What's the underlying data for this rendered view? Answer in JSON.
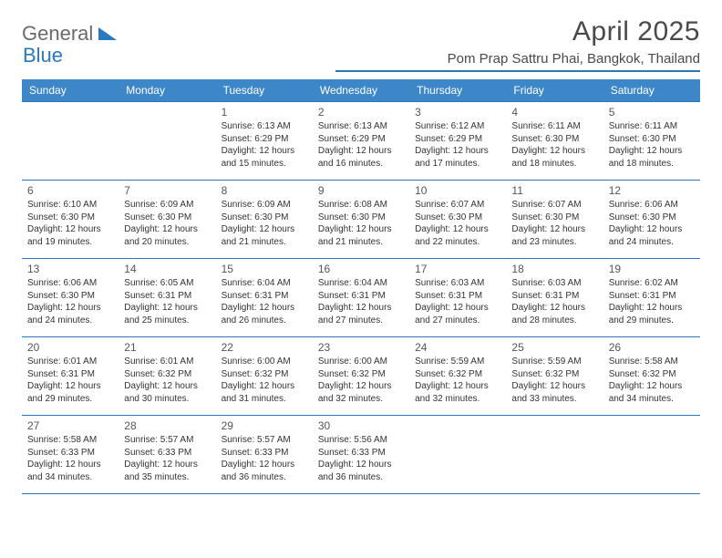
{
  "brand": {
    "part1": "General",
    "part2": "Blue"
  },
  "title": {
    "month": "April 2025",
    "location": "Pom Prap Sattru Phai, Bangkok, Thailand"
  },
  "colors": {
    "header_bg": "#3d87c9",
    "border": "#2a79c0",
    "logo_gray": "#6b6b6b",
    "logo_blue": "#2a79c0"
  },
  "dayHeaders": [
    "Sunday",
    "Monday",
    "Tuesday",
    "Wednesday",
    "Thursday",
    "Friday",
    "Saturday"
  ],
  "weeks": [
    [
      null,
      null,
      {
        "n": "1",
        "sr": "6:13 AM",
        "ss": "6:29 PM",
        "dl": "12 hours and 15 minutes."
      },
      {
        "n": "2",
        "sr": "6:13 AM",
        "ss": "6:29 PM",
        "dl": "12 hours and 16 minutes."
      },
      {
        "n": "3",
        "sr": "6:12 AM",
        "ss": "6:29 PM",
        "dl": "12 hours and 17 minutes."
      },
      {
        "n": "4",
        "sr": "6:11 AM",
        "ss": "6:30 PM",
        "dl": "12 hours and 18 minutes."
      },
      {
        "n": "5",
        "sr": "6:11 AM",
        "ss": "6:30 PM",
        "dl": "12 hours and 18 minutes."
      }
    ],
    [
      {
        "n": "6",
        "sr": "6:10 AM",
        "ss": "6:30 PM",
        "dl": "12 hours and 19 minutes."
      },
      {
        "n": "7",
        "sr": "6:09 AM",
        "ss": "6:30 PM",
        "dl": "12 hours and 20 minutes."
      },
      {
        "n": "8",
        "sr": "6:09 AM",
        "ss": "6:30 PM",
        "dl": "12 hours and 21 minutes."
      },
      {
        "n": "9",
        "sr": "6:08 AM",
        "ss": "6:30 PM",
        "dl": "12 hours and 21 minutes."
      },
      {
        "n": "10",
        "sr": "6:07 AM",
        "ss": "6:30 PM",
        "dl": "12 hours and 22 minutes."
      },
      {
        "n": "11",
        "sr": "6:07 AM",
        "ss": "6:30 PM",
        "dl": "12 hours and 23 minutes."
      },
      {
        "n": "12",
        "sr": "6:06 AM",
        "ss": "6:30 PM",
        "dl": "12 hours and 24 minutes."
      }
    ],
    [
      {
        "n": "13",
        "sr": "6:06 AM",
        "ss": "6:30 PM",
        "dl": "12 hours and 24 minutes."
      },
      {
        "n": "14",
        "sr": "6:05 AM",
        "ss": "6:31 PM",
        "dl": "12 hours and 25 minutes."
      },
      {
        "n": "15",
        "sr": "6:04 AM",
        "ss": "6:31 PM",
        "dl": "12 hours and 26 minutes."
      },
      {
        "n": "16",
        "sr": "6:04 AM",
        "ss": "6:31 PM",
        "dl": "12 hours and 27 minutes."
      },
      {
        "n": "17",
        "sr": "6:03 AM",
        "ss": "6:31 PM",
        "dl": "12 hours and 27 minutes."
      },
      {
        "n": "18",
        "sr": "6:03 AM",
        "ss": "6:31 PM",
        "dl": "12 hours and 28 minutes."
      },
      {
        "n": "19",
        "sr": "6:02 AM",
        "ss": "6:31 PM",
        "dl": "12 hours and 29 minutes."
      }
    ],
    [
      {
        "n": "20",
        "sr": "6:01 AM",
        "ss": "6:31 PM",
        "dl": "12 hours and 29 minutes."
      },
      {
        "n": "21",
        "sr": "6:01 AM",
        "ss": "6:32 PM",
        "dl": "12 hours and 30 minutes."
      },
      {
        "n": "22",
        "sr": "6:00 AM",
        "ss": "6:32 PM",
        "dl": "12 hours and 31 minutes."
      },
      {
        "n": "23",
        "sr": "6:00 AM",
        "ss": "6:32 PM",
        "dl": "12 hours and 32 minutes."
      },
      {
        "n": "24",
        "sr": "5:59 AM",
        "ss": "6:32 PM",
        "dl": "12 hours and 32 minutes."
      },
      {
        "n": "25",
        "sr": "5:59 AM",
        "ss": "6:32 PM",
        "dl": "12 hours and 33 minutes."
      },
      {
        "n": "26",
        "sr": "5:58 AM",
        "ss": "6:32 PM",
        "dl": "12 hours and 34 minutes."
      }
    ],
    [
      {
        "n": "27",
        "sr": "5:58 AM",
        "ss": "6:33 PM",
        "dl": "12 hours and 34 minutes."
      },
      {
        "n": "28",
        "sr": "5:57 AM",
        "ss": "6:33 PM",
        "dl": "12 hours and 35 minutes."
      },
      {
        "n": "29",
        "sr": "5:57 AM",
        "ss": "6:33 PM",
        "dl": "12 hours and 36 minutes."
      },
      {
        "n": "30",
        "sr": "5:56 AM",
        "ss": "6:33 PM",
        "dl": "12 hours and 36 minutes."
      },
      null,
      null,
      null
    ]
  ],
  "labels": {
    "sunrise": "Sunrise:",
    "sunset": "Sunset:",
    "daylight": "Daylight:"
  }
}
